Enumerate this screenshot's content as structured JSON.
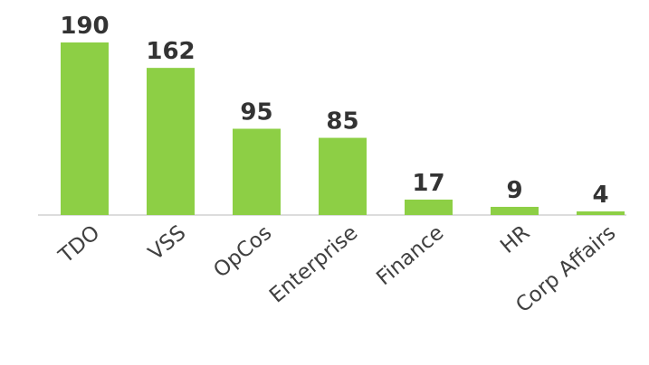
{
  "chart_data": {
    "type": "bar",
    "categories": [
      "TDO",
      "VSS",
      "OpCos",
      "Enterprise",
      "Finance",
      "HR",
      "Corp Affairs"
    ],
    "values": [
      190,
      162,
      95,
      85,
      17,
      9,
      4
    ],
    "color": "#8dcf45"
  }
}
